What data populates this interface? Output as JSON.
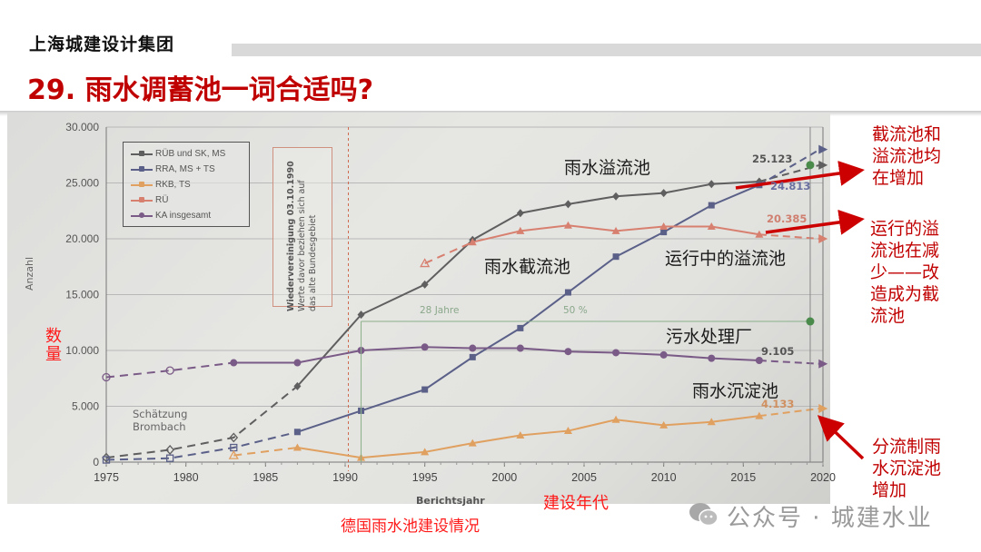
{
  "header": {
    "brand": "上海城建设计集团",
    "title": "29. 雨水调蓄池一词合适吗?"
  },
  "chart_data": {
    "type": "line",
    "title": "德国雨水池建设情况",
    "xlabel": "Berichtsjahr",
    "ylabel": "Anzahl",
    "xlabel_cn": "建设年代",
    "ylabel_cn": "数量",
    "xlim": [
      1975,
      2020
    ],
    "ylim": [
      0,
      30000
    ],
    "x_ticks": [
      "1975",
      "1980",
      "1985",
      "1990",
      "1995",
      "2000",
      "2005",
      "2010",
      "2015",
      "2020"
    ],
    "y_ticks": [
      "0",
      "5.000",
      "10.000",
      "15.000",
      "20.000",
      "25.000",
      "30.000"
    ],
    "grid": true,
    "legend_position": "top-left",
    "series": [
      {
        "name": "RÜB und SK, MS",
        "name_cn": "雨水溢流池",
        "color": "#5f5f5f",
        "marker": "diamond",
        "estimated_points": [
          [
            1975,
            400
          ],
          [
            1979,
            1100
          ],
          [
            1983,
            2200
          ]
        ],
        "points": [
          [
            1987,
            6800
          ],
          [
            1991,
            13200
          ],
          [
            1995,
            15900
          ],
          [
            1998,
            19900
          ],
          [
            2001,
            22300
          ],
          [
            2004,
            23100
          ],
          [
            2007,
            23800
          ],
          [
            2010,
            24100
          ],
          [
            2013,
            24900
          ],
          [
            2016,
            25123
          ]
        ],
        "end_label": "25.123"
      },
      {
        "name": "RRA, MS + TS",
        "name_cn": "雨水截流池",
        "color": "#5a6088",
        "marker": "square",
        "estimated_points": [
          [
            1975,
            200
          ],
          [
            1979,
            350
          ],
          [
            1983,
            1300
          ]
        ],
        "points": [
          [
            1987,
            2700
          ],
          [
            1991,
            4600
          ],
          [
            1995,
            6500
          ],
          [
            1998,
            9400
          ],
          [
            2001,
            12000
          ],
          [
            2004,
            15200
          ],
          [
            2007,
            18400
          ],
          [
            2010,
            20600
          ],
          [
            2013,
            23000
          ],
          [
            2016,
            24813
          ]
        ],
        "end_label": "24.813"
      },
      {
        "name": "RKB, TS",
        "name_cn": "雨水沉淀池",
        "color": "#e0a060",
        "marker": "triangle",
        "estimated_points": [
          [
            1983,
            600
          ]
        ],
        "points": [
          [
            1987,
            1300
          ],
          [
            1991,
            400
          ],
          [
            1995,
            900
          ],
          [
            1998,
            1700
          ],
          [
            2001,
            2400
          ],
          [
            2004,
            2800
          ],
          [
            2007,
            3800
          ],
          [
            2010,
            3300
          ],
          [
            2013,
            3600
          ],
          [
            2016,
            4133
          ]
        ],
        "end_label": "4.133"
      },
      {
        "name": "RÜ",
        "name_cn": "运行中的溢流池",
        "color": "#d88070",
        "marker": "triangle",
        "estimated_points": [
          [
            1995,
            17800
          ]
        ],
        "points": [
          [
            1998,
            19700
          ],
          [
            2001,
            20700
          ],
          [
            2004,
            21200
          ],
          [
            2007,
            20700
          ],
          [
            2010,
            21100
          ],
          [
            2013,
            21100
          ],
          [
            2016,
            20385
          ]
        ],
        "end_label": "20.385"
      },
      {
        "name": "KA insgesamt",
        "name_cn": "污水处理厂",
        "color": "#7a5a86",
        "marker": "circle",
        "estimated_points": [
          [
            1975,
            7600
          ],
          [
            1979,
            8200
          ]
        ],
        "points": [
          [
            1983,
            8900
          ],
          [
            1987,
            8900
          ],
          [
            1991,
            10000
          ],
          [
            1995,
            10300
          ],
          [
            1998,
            10200
          ],
          [
            2001,
            10200
          ],
          [
            2004,
            9900
          ],
          [
            2007,
            9800
          ],
          [
            2010,
            9600
          ],
          [
            2013,
            9300
          ],
          [
            2016,
            9105
          ]
        ],
        "end_label": "9.105"
      }
    ],
    "annotations": [
      "Wiedervereinigung 03.10.1990",
      "Werte davor beziehen sich auf",
      "das alte Bundesgebiet",
      "28 Jahre",
      "50 %",
      "Schätzung",
      "Brombach"
    ]
  },
  "chart_labels": {
    "y_axis_cn": "数量",
    "x_axis_cn": "建设年代",
    "caption": "德国雨水池建设情况",
    "overflow_basin": "雨水溢流池",
    "interception_basin": "雨水截流池",
    "operating_overflow": "运行中的溢流池",
    "wwtp": "污水处理厂",
    "sedimentation": "雨水沉淀池",
    "schaetzung_1": "Schätzung",
    "schaetzung_2": "Brombach",
    "reunification_1": "Wiedervereinigung 03.10.1990",
    "reunification_2": "Werte davor beziehen sich auf",
    "reunification_3": "das alte Bundesgebiet",
    "jahre": "28 Jahre",
    "percent": "50 %",
    "ylabel": "Anzahl",
    "xlabel": "Berichtsjahr",
    "val_25123": "25.123",
    "val_24813": "24.813",
    "val_20385": "20.385",
    "val_9105": "9.105",
    "val_4133": "4.133"
  },
  "legend": [
    {
      "label": "RÜB und SK, MS",
      "color": "#5f5f5f"
    },
    {
      "label": "RRA, MS + TS",
      "color": "#5a6088"
    },
    {
      "label": "RKB, TS",
      "color": "#e0a060"
    },
    {
      "label": "RÜ",
      "color": "#d88070"
    },
    {
      "label": "KA insgesamt",
      "color": "#7a5a86"
    }
  ],
  "side_notes": {
    "note1": [
      "截流池和",
      "溢流池均",
      "在增加"
    ],
    "note2": [
      "运行的溢",
      "流池在减",
      "少——改",
      "造成为截",
      "流池"
    ],
    "note3": [
      "分流制雨",
      "水沉淀池",
      "增加"
    ]
  },
  "watermark": "公众号 · 城建水业",
  "colors": {
    "title_red": "#c00000",
    "annotation_red": "#c00000",
    "arrow_red": "#cc0000"
  }
}
